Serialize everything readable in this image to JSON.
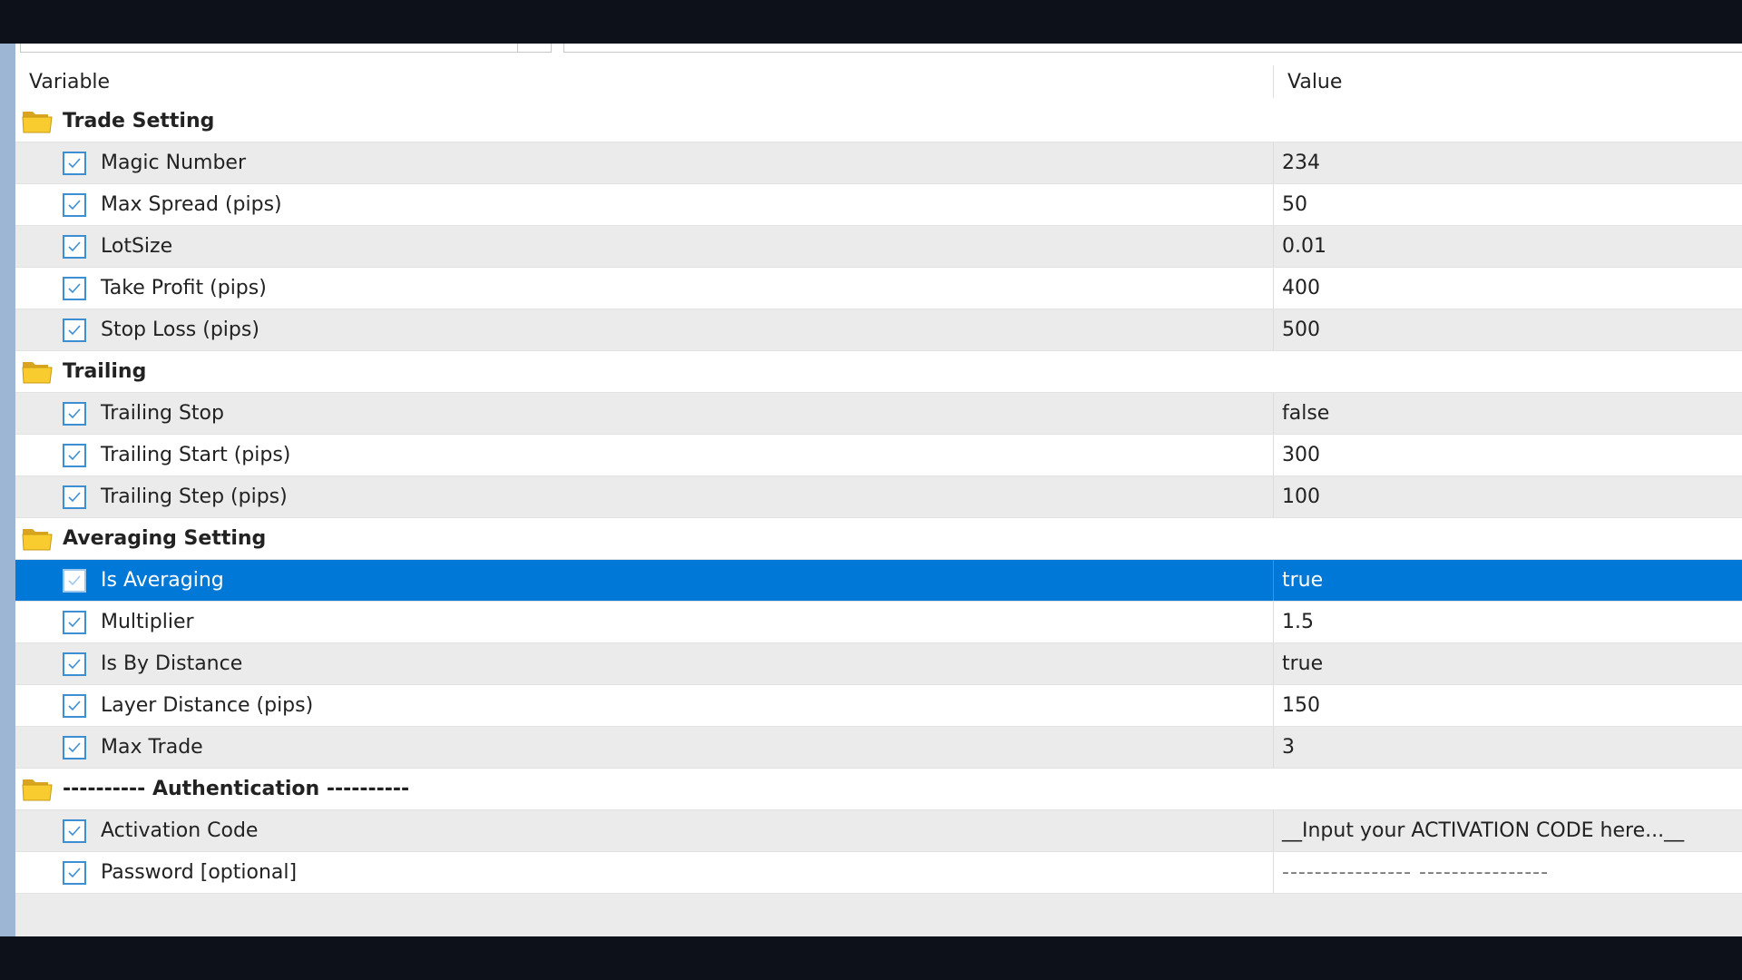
{
  "columns": {
    "variable": "Variable",
    "value": "Value"
  },
  "colors": {
    "selected_row": "#0078d7",
    "checkbox": "#3d8fd1",
    "folder": "#f5c518"
  },
  "groups": [
    {
      "title": "Trade Setting",
      "items": [
        {
          "name": "Magic Number",
          "value": "234",
          "checked": true
        },
        {
          "name": "Max Spread (pips)",
          "value": "50",
          "checked": true
        },
        {
          "name": "LotSize",
          "value": "0.01",
          "checked": true
        },
        {
          "name": "Take Profit (pips)",
          "value": "400",
          "checked": true
        },
        {
          "name": "Stop Loss (pips)",
          "value": "500",
          "checked": true
        }
      ]
    },
    {
      "title": "Trailing",
      "items": [
        {
          "name": "Trailing Stop",
          "value": "false",
          "checked": true
        },
        {
          "name": "Trailing Start (pips)",
          "value": "300",
          "checked": true
        },
        {
          "name": "Trailing Step (pips)",
          "value": "100",
          "checked": true
        }
      ]
    },
    {
      "title": "Averaging Setting",
      "items": [
        {
          "name": "Is Averaging",
          "value": "true",
          "checked": true,
          "selected": true
        },
        {
          "name": "Multiplier",
          "value": "1.5",
          "checked": true
        },
        {
          "name": "Is By Distance",
          "value": "true",
          "checked": true
        },
        {
          "name": "Layer Distance (pips)",
          "value": "150",
          "checked": true
        },
        {
          "name": "Max Trade",
          "value": "3",
          "checked": true
        }
      ]
    },
    {
      "title": "---------- Authentication ----------",
      "items": [
        {
          "name": "Activation Code",
          "value": "__Input your ACTIVATION CODE here...__",
          "checked": true
        },
        {
          "name": "Password [optional]",
          "value": "----------------  ----------------",
          "checked": true
        }
      ]
    }
  ]
}
